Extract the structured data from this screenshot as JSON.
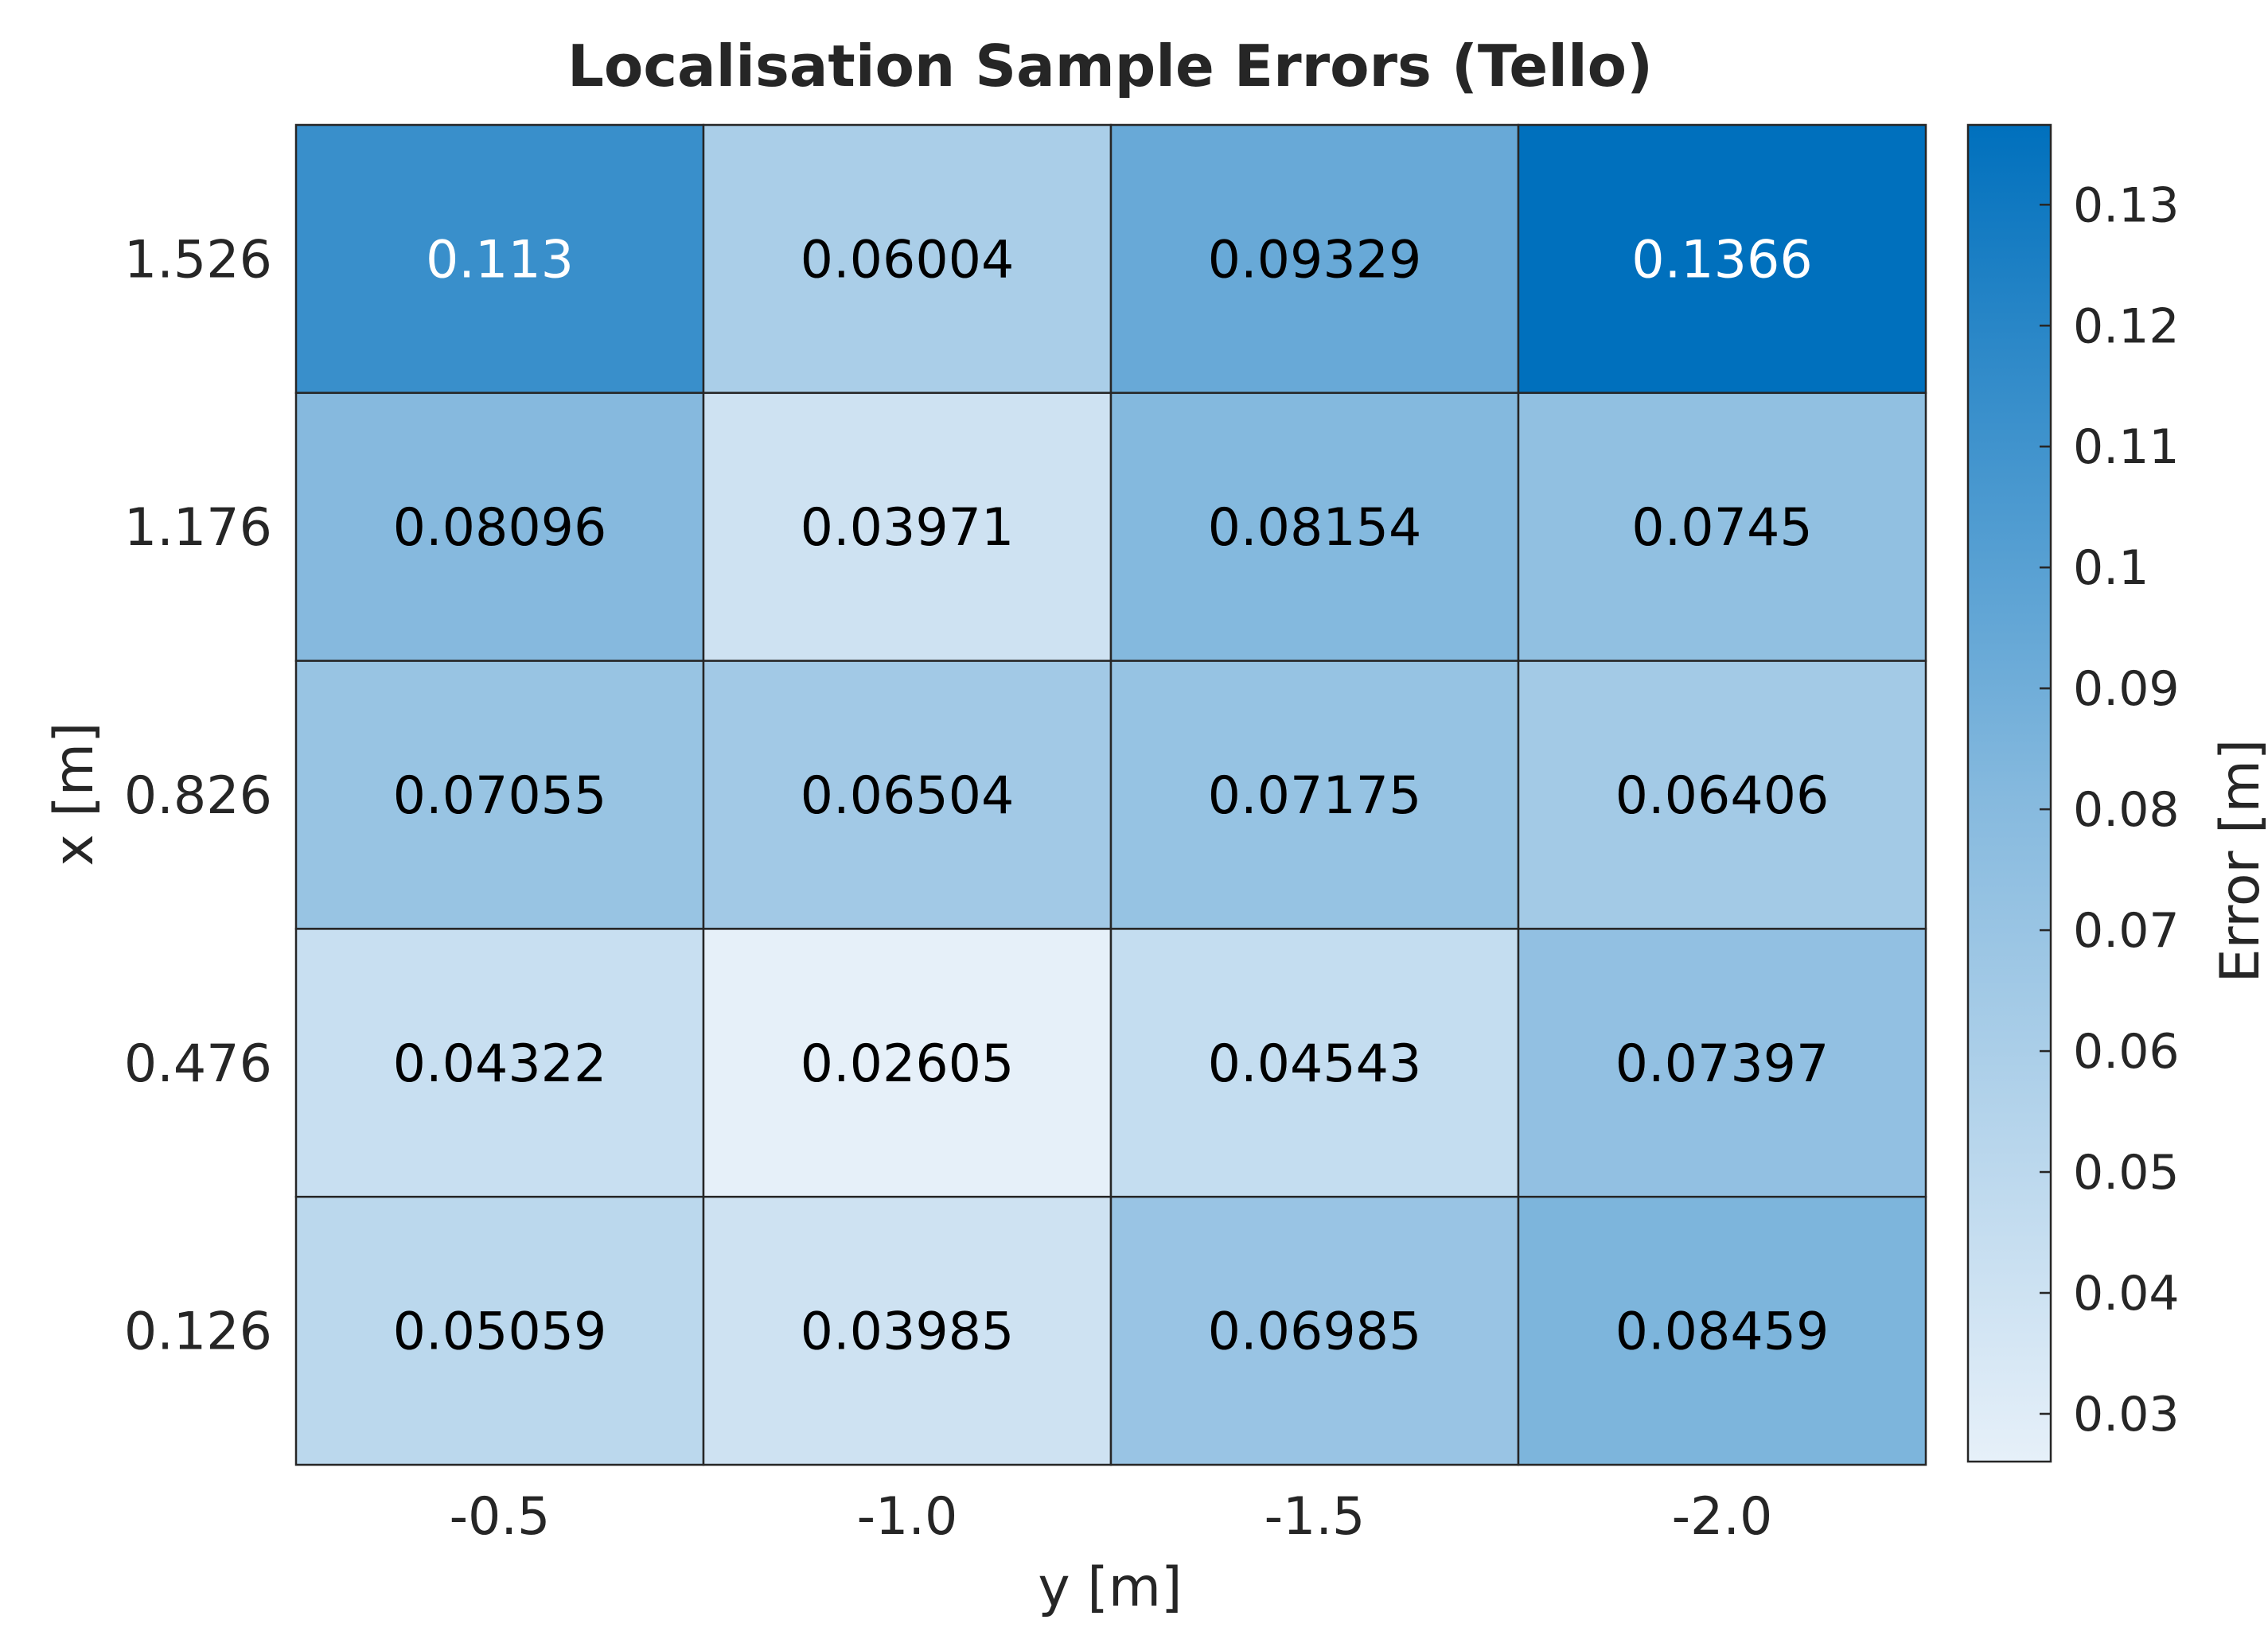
{
  "chart_data": {
    "type": "heatmap",
    "title": "Localisation Sample Errors (Tello)",
    "xlabel": "y [m]",
    "ylabel": "x [m]",
    "x_categories": [
      "-0.5",
      "-1.0",
      "-1.5",
      "-2.0"
    ],
    "y_categories": [
      "1.526",
      "1.176",
      "0.826",
      "0.476",
      "0.126"
    ],
    "values": [
      [
        0.113,
        0.06004,
        0.09329,
        0.1366
      ],
      [
        0.08096,
        0.03971,
        0.08154,
        0.0745
      ],
      [
        0.07055,
        0.06504,
        0.07175,
        0.06406
      ],
      [
        0.04322,
        0.02605,
        0.04543,
        0.07397
      ],
      [
        0.05059,
        0.03985,
        0.06985,
        0.08459
      ]
    ],
    "cell_labels": [
      [
        "0.113",
        "0.06004",
        "0.09329",
        "0.1366"
      ],
      [
        "0.08096",
        "0.03971",
        "0.08154",
        "0.0745"
      ],
      [
        "0.07055",
        "0.06504",
        "0.07175",
        "0.06406"
      ],
      [
        "0.04322",
        "0.02605",
        "0.04543",
        "0.07397"
      ],
      [
        "0.05059",
        "0.03985",
        "0.06985",
        "0.08459"
      ]
    ],
    "colorbar": {
      "label": "Error [m]",
      "range": [
        0.02605,
        0.1366
      ],
      "ticks": [
        0.03,
        0.04,
        0.05,
        0.06,
        0.07,
        0.08,
        0.09,
        0.1,
        0.11,
        0.12,
        0.13
      ],
      "tick_labels": [
        "0.03",
        "0.04",
        "0.05",
        "0.06",
        "0.07",
        "0.08",
        "0.09",
        "0.1",
        "0.11",
        "0.12",
        "0.13"
      ]
    },
    "colormap": {
      "low": "#e6f0f9",
      "mid": "#85b9de",
      "high": "#0070bd"
    },
    "light_text_color": "#ffffff",
    "dark_text_color": "#000000",
    "grid": false,
    "legend": "none"
  }
}
